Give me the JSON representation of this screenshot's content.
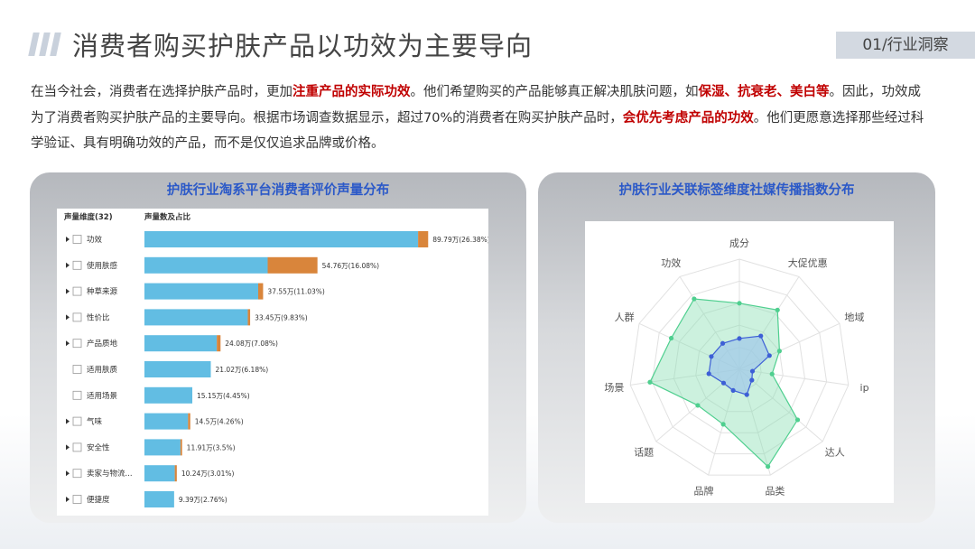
{
  "header": {
    "title": "消费者购买护肤产品以功效为主要导向",
    "section_tag": "01/行业洞察"
  },
  "intro": {
    "segments": [
      {
        "text": "在当今社会，消费者在选择护肤产品时，更加",
        "hl": false
      },
      {
        "text": "注重产品的实际功效",
        "hl": true
      },
      {
        "text": "。他们希望购买的产品能够真正解决肌肤问题，如",
        "hl": false
      },
      {
        "text": "保湿、抗衰老、美白等",
        "hl": true
      },
      {
        "text": "。因此，功效成为了消费者购买护肤产品的主要导向。根据市场调查数据显示，超过70%的消费者在购买护肤产品时，",
        "hl": false
      },
      {
        "text": "会优先考虑产品的功效",
        "hl": true
      },
      {
        "text": "。他们更愿意选择那些经过科学验证、具有明确功效的产品，而不是仅仅追求品牌或价格。",
        "hl": false
      }
    ]
  },
  "colors": {
    "bar_main": "#62bde3",
    "bar_accent": "#d9853b",
    "radar_outer_stroke": "#4fcf8f",
    "radar_outer_fill": "#8fe0b5",
    "radar_inner_stroke": "#3d5fd6",
    "radar_inner_fill": "#9fc7ea",
    "accent_text": "#c00000",
    "panel_title": "#2b59c8"
  },
  "chart_data": [
    {
      "type": "bar",
      "title": "护肤行业淘系平台消费者评价声量分布",
      "col_headers": [
        "声量维度(32)",
        "声量数及占比"
      ],
      "categories": [
        "功效",
        "使用肤感",
        "种草来源",
        "性价比",
        "产品质地",
        "适用肤质",
        "适用场景",
        "气味",
        "安全性",
        "卖家与物流...",
        "便捷度"
      ],
      "expandable": [
        true,
        true,
        true,
        true,
        true,
        false,
        false,
        true,
        true,
        true,
        true
      ],
      "series": [
        {
          "values": [
            86.6,
            39.0,
            36.0,
            32.7,
            22.9,
            21.0,
            15.15,
            13.8,
            11.4,
            9.6,
            9.39
          ]
        },
        {
          "values": [
            3.19,
            15.76,
            1.55,
            0.75,
            1.18,
            0,
            0,
            0.7,
            0.51,
            0.64,
            0
          ]
        }
      ],
      "value_labels": [
        "89.79万(26.38%)",
        "54.76万(16.08%)",
        "37.55万(11.03%)",
        "33.45万(9.83%)",
        "24.08万(7.08%)",
        "21.02万(6.18%)",
        "15.15万(4.45%)",
        "14.5万(4.26%)",
        "11.91万(3.5%)",
        "10.24万(3.01%)",
        "9.39万(2.76%)"
      ],
      "xlim": [
        0,
        100
      ],
      "grid": false,
      "legend": "none"
    },
    {
      "type": "radar",
      "title": "护肤行业关联标签维度社媒传播指数分布",
      "axes": [
        "成分",
        "大促优惠",
        "地域",
        "ip",
        "达人",
        "品类",
        "品牌",
        "话题",
        "场景",
        "人群",
        "功效"
      ],
      "rings": 5,
      "rmax": 5,
      "series": [
        {
          "values": [
            3.0,
            3.2,
            2.0,
            1.5,
            3.5,
            4.6,
            2.6,
            2.5,
            4.1,
            3.4,
            3.8
          ]
        },
        {
          "values": [
            1.4,
            1.8,
            1.5,
            0.6,
            0.75,
            1.2,
            1.0,
            0.95,
            1.4,
            1.4,
            1.4
          ]
        }
      ],
      "legend": "none"
    }
  ]
}
